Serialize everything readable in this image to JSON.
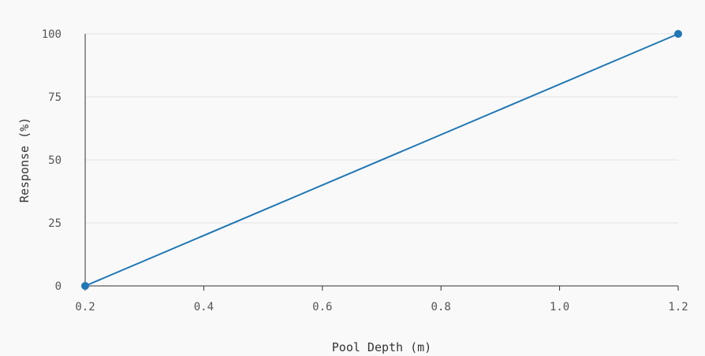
{
  "chart_data": {
    "type": "line",
    "xlabel": "Pool Depth (m)",
    "ylabel": "Response (%)",
    "x_ticks": [
      "0.2",
      "0.4",
      "0.6",
      "0.8",
      "1.0",
      "1.2"
    ],
    "y_ticks": [
      "0",
      "25",
      "50",
      "75",
      "100"
    ],
    "xlim": [
      0.2,
      1.2
    ],
    "ylim": [
      0,
      100
    ],
    "grid": true,
    "series": [
      {
        "x": [
          0.2,
          1.2
        ],
        "y": [
          0,
          100
        ]
      }
    ],
    "colors": {
      "line": "#1f77b4",
      "background": "#f9f9f9",
      "grid": "#e2e2e2",
      "axis": "#333333"
    }
  }
}
